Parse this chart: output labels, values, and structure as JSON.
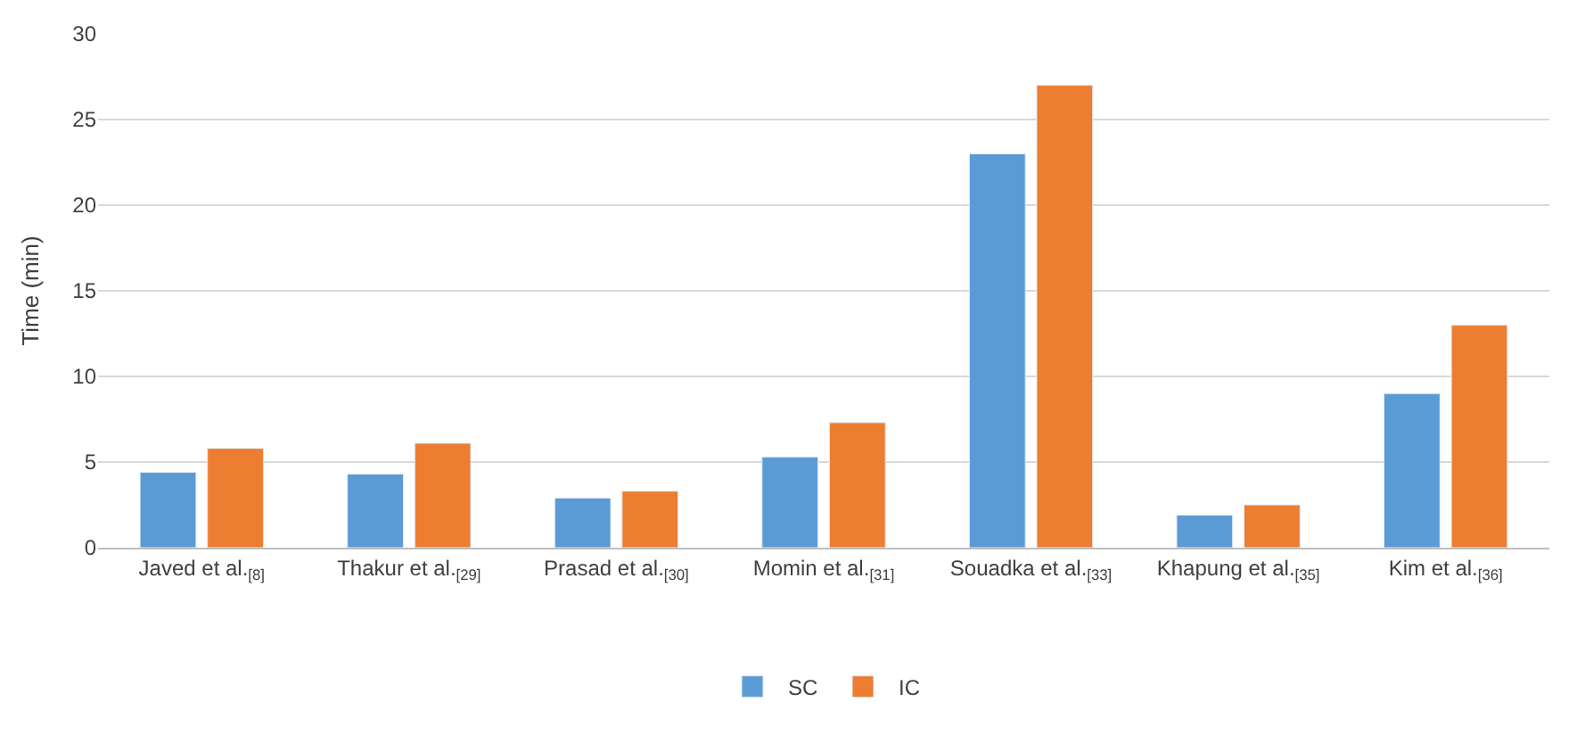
{
  "chart_data": {
    "type": "bar",
    "ylabel": "Time (min)",
    "categories": [
      "Javed et al.$_{[8]}$",
      "Thakur et al.$_{[29]}$",
      "Prasad et al.$_{[30]}$",
      "Momin et al.$_{[31]}$",
      "Souadka et al.$_{[33]}$",
      "Khapung et al.$_{[35]}$",
      "Kim et al.$_{[36]}$"
    ],
    "series": [
      {
        "name": "SC",
        "color": "#5b9bd5",
        "values": [
          4.4,
          4.3,
          2.9,
          5.3,
          23,
          1.9,
          9
        ]
      },
      {
        "name": "IC",
        "color": "#ed7d31",
        "values": [
          5.8,
          6.1,
          3.3,
          7.3,
          27,
          2.5,
          13
        ]
      }
    ],
    "ylim": [
      0,
      30
    ],
    "yticks": [
      0,
      5,
      10,
      15,
      20,
      25,
      30
    ],
    "grid": "y",
    "legend": "bottom"
  }
}
